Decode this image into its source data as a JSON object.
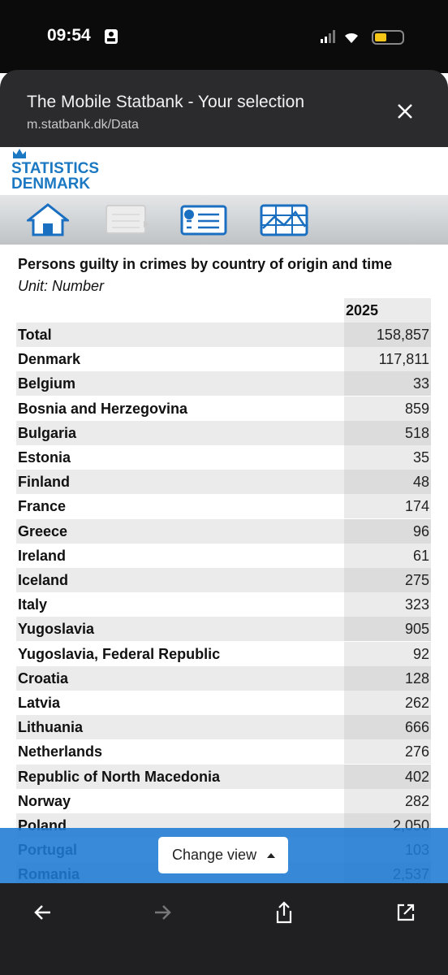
{
  "status_bar": {
    "time": "09:54"
  },
  "browser": {
    "title": "The Mobile Statbank - Your selection",
    "url": "m.statbank.dk/Data"
  },
  "logo": {
    "line1": "STATISTICS",
    "line2": "DENMARK"
  },
  "table": {
    "title": "Persons guilty in crimes by country of origin and time",
    "unit": "Unit: Number",
    "header": "2025",
    "rows": [
      [
        "Total",
        "158,857"
      ],
      [
        "Denmark",
        "117,811"
      ],
      [
        "Belgium",
        "33"
      ],
      [
        "Bosnia and Herzegovina",
        "859"
      ],
      [
        "Bulgaria",
        "518"
      ],
      [
        "Estonia",
        "35"
      ],
      [
        "Finland",
        "48"
      ],
      [
        "France",
        "174"
      ],
      [
        "Greece",
        "96"
      ],
      [
        "Ireland",
        "61"
      ],
      [
        "Iceland",
        "275"
      ],
      [
        "Italy",
        "323"
      ],
      [
        "Yugoslavia",
        "905"
      ],
      [
        "Yugoslavia, Federal Republic",
        "92"
      ],
      [
        "Croatia",
        "128"
      ],
      [
        "Latvia",
        "262"
      ],
      [
        "Lithuania",
        "666"
      ],
      [
        "Netherlands",
        "276"
      ],
      [
        "Republic of North Macedonia",
        "402"
      ],
      [
        "Norway",
        "282"
      ],
      [
        "Poland",
        "2,050"
      ],
      [
        "Portugal",
        "103"
      ],
      [
        "Romania",
        "2,537"
      ]
    ]
  },
  "button": {
    "label": "Change view"
  }
}
